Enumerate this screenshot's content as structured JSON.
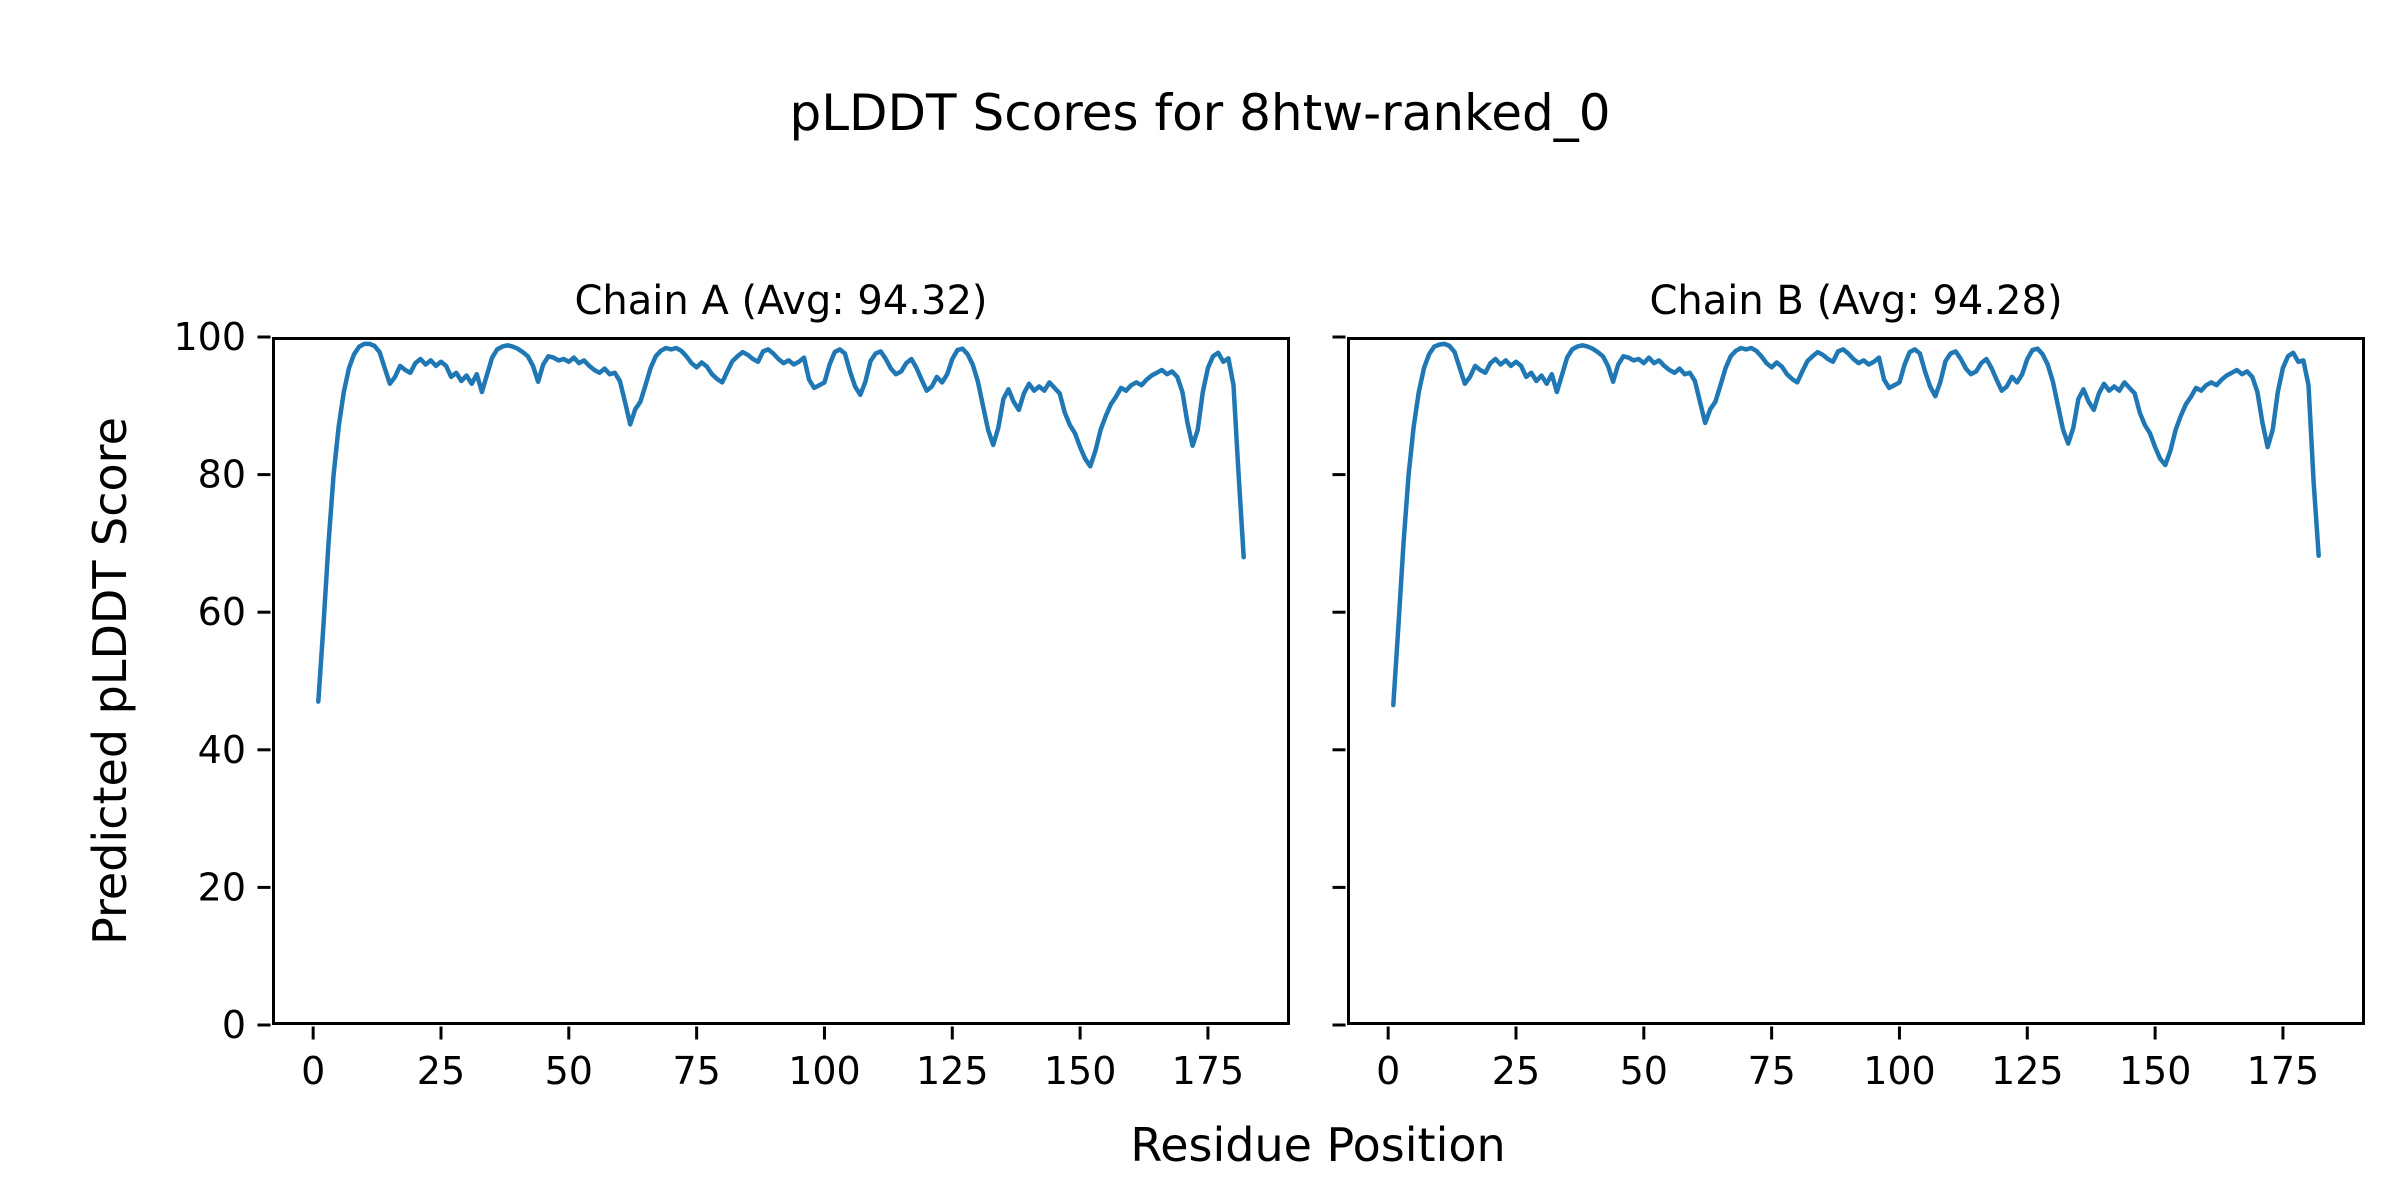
{
  "figure": {
    "title": "pLDDT Scores for 8htw-ranked_0",
    "xlabel": "Residue Position",
    "ylabel": "Predicted pLDDT Score",
    "background_color": "#ffffff",
    "text_color": "#000000",
    "spine_color": "#000000",
    "line_color": "#1f77b4"
  },
  "chart_data": [
    {
      "type": "line",
      "chain": "A",
      "title": "Chain A (Avg: 94.32)",
      "average_plddt": 94.32,
      "line_color": "#1f77b4",
      "grid": false,
      "legend": "none",
      "xlim": [
        -8.05,
        191.05
      ],
      "ylim": [
        0,
        100
      ],
      "xticks": [
        0,
        25,
        50,
        75,
        100,
        125,
        150,
        175
      ],
      "yticks": [
        0,
        20,
        40,
        60,
        80,
        100
      ],
      "show_ytick_labels": true,
      "x_start": 1,
      "x_step": 1,
      "values": [
        47.0,
        58.0,
        70.0,
        80.0,
        87.0,
        92.0,
        95.5,
        97.5,
        98.6,
        99.0,
        99.0,
        98.7,
        97.8,
        95.5,
        93.2,
        94.2,
        95.8,
        95.2,
        94.8,
        96.2,
        96.8,
        96.0,
        96.6,
        95.8,
        96.4,
        95.8,
        94.2,
        94.8,
        93.6,
        94.4,
        93.2,
        94.6,
        92.0,
        94.5,
        97.0,
        98.2,
        98.6,
        98.8,
        98.6,
        98.3,
        97.8,
        97.2,
        95.8,
        93.5,
        96.0,
        97.2,
        97.0,
        96.6,
        96.8,
        96.4,
        97.0,
        96.2,
        96.6,
        95.8,
        95.2,
        94.8,
        95.4,
        94.6,
        94.8,
        93.6,
        90.5,
        87.3,
        89.5,
        90.6,
        93.0,
        95.5,
        97.2,
        98.0,
        98.4,
        98.2,
        98.4,
        98.0,
        97.2,
        96.2,
        95.6,
        96.3,
        95.7,
        94.6,
        93.9,
        93.4,
        95.0,
        96.5,
        97.2,
        97.8,
        97.4,
        96.8,
        96.4,
        97.9,
        98.2,
        97.6,
        96.8,
        96.2,
        96.6,
        96.0,
        96.4,
        97.0,
        93.8,
        92.6,
        93.0,
        93.4,
        96.0,
        97.8,
        98.2,
        97.6,
        95.0,
        92.8,
        91.6,
        93.5,
        96.5,
        97.6,
        97.9,
        96.8,
        95.4,
        94.6,
        95.0,
        96.2,
        96.8,
        95.5,
        93.8,
        92.2,
        92.8,
        94.2,
        93.4,
        94.6,
        96.8,
        98.1,
        98.3,
        97.5,
        96.0,
        93.5,
        90.0,
        86.5,
        84.3,
        86.8,
        91.0,
        92.4,
        90.6,
        89.4,
        91.8,
        93.2,
        92.2,
        92.8,
        92.2,
        93.4,
        92.6,
        91.8,
        89.0,
        87.2,
        86.0,
        84.0,
        82.3,
        81.2,
        83.5,
        86.5,
        88.5,
        90.2,
        91.3,
        92.6,
        92.2,
        93.0,
        93.4,
        93.0,
        93.8,
        94.4,
        94.8,
        95.2,
        94.6,
        95.0,
        94.2,
        92.0,
        87.5,
        84.2,
        86.5,
        92.0,
        95.5,
        97.2,
        97.7,
        96.4,
        96.9,
        93.0,
        80.0,
        68.0
      ]
    },
    {
      "type": "line",
      "chain": "B",
      "title": "Chain B (Avg: 94.28)",
      "average_plddt": 94.28,
      "line_color": "#1f77b4",
      "grid": false,
      "legend": "none",
      "xlim": [
        -8.05,
        191.05
      ],
      "ylim": [
        0,
        100
      ],
      "xticks": [
        0,
        25,
        50,
        75,
        100,
        125,
        150,
        175
      ],
      "yticks": [
        0,
        20,
        40,
        60,
        80,
        100
      ],
      "show_ytick_labels": false,
      "x_start": 1,
      "x_step": 1,
      "values": [
        46.5,
        58.0,
        70.0,
        80.0,
        87.0,
        92.0,
        95.5,
        97.5,
        98.6,
        98.9,
        99.0,
        98.7,
        97.8,
        95.5,
        93.2,
        94.2,
        95.8,
        95.2,
        94.8,
        96.2,
        96.8,
        96.0,
        96.6,
        95.8,
        96.4,
        95.8,
        94.2,
        94.8,
        93.6,
        94.4,
        93.2,
        94.6,
        92.0,
        94.5,
        97.0,
        98.2,
        98.6,
        98.8,
        98.6,
        98.3,
        97.8,
        97.2,
        95.8,
        93.5,
        96.0,
        97.2,
        97.0,
        96.6,
        96.8,
        96.2,
        97.0,
        96.2,
        96.6,
        95.8,
        95.2,
        94.8,
        95.4,
        94.6,
        94.8,
        93.6,
        90.5,
        87.5,
        89.5,
        90.6,
        93.0,
        95.5,
        97.2,
        98.0,
        98.4,
        98.2,
        98.4,
        98.0,
        97.2,
        96.2,
        95.6,
        96.3,
        95.7,
        94.6,
        93.9,
        93.4,
        95.0,
        96.5,
        97.2,
        97.8,
        97.4,
        96.8,
        96.4,
        97.9,
        98.2,
        97.6,
        96.8,
        96.2,
        96.6,
        96.0,
        96.4,
        97.0,
        93.8,
        92.6,
        93.0,
        93.4,
        96.0,
        97.8,
        98.2,
        97.6,
        95.0,
        92.8,
        91.4,
        93.5,
        96.5,
        97.6,
        97.9,
        96.8,
        95.4,
        94.6,
        95.0,
        96.2,
        96.8,
        95.5,
        93.8,
        92.2,
        92.8,
        94.2,
        93.4,
        94.6,
        96.8,
        98.1,
        98.3,
        97.5,
        96.0,
        93.5,
        90.0,
        86.5,
        84.5,
        86.8,
        91.0,
        92.4,
        90.6,
        89.4,
        91.8,
        93.2,
        92.2,
        92.8,
        92.2,
        93.4,
        92.6,
        91.8,
        89.0,
        87.2,
        86.0,
        84.0,
        82.3,
        81.4,
        83.5,
        86.5,
        88.5,
        90.2,
        91.3,
        92.6,
        92.2,
        93.0,
        93.4,
        93.0,
        93.8,
        94.4,
        94.8,
        95.2,
        94.6,
        95.0,
        94.2,
        92.0,
        87.5,
        84.0,
        86.5,
        92.0,
        95.5,
        97.2,
        97.7,
        96.4,
        96.6,
        93.0,
        79.0,
        68.2
      ]
    }
  ]
}
